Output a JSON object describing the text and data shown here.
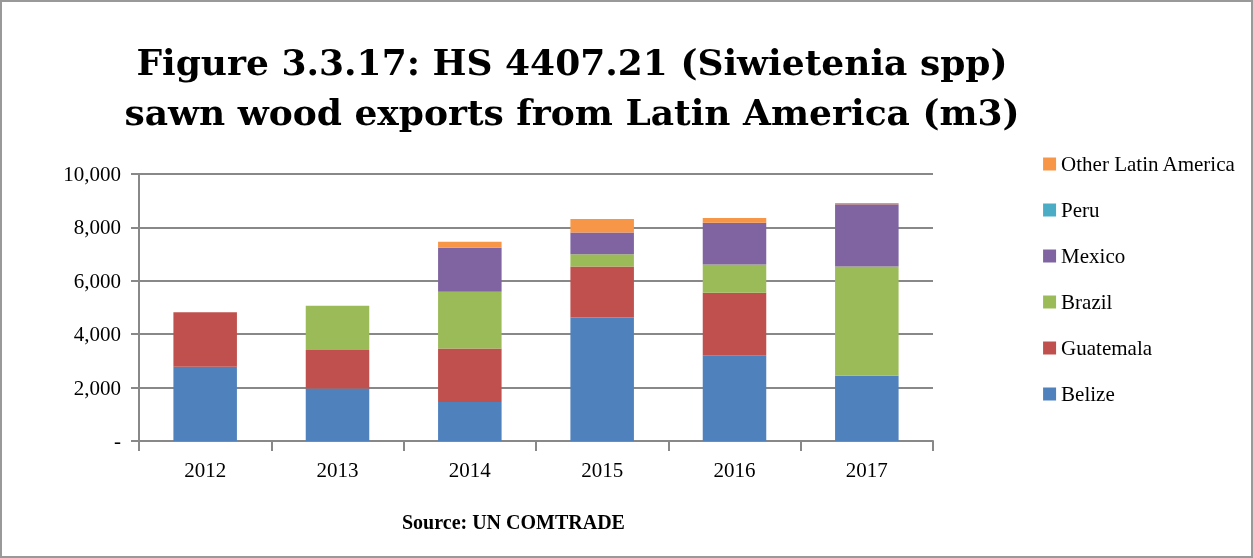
{
  "chart_data": {
    "type": "bar",
    "title": "Figure 3.3.17: HS 4407.21 (Siwietenia spp)\nsawn wood exports from Latin America (m3)",
    "categories": [
      "2012",
      "2013",
      "2014",
      "2015",
      "2016",
      "2017"
    ],
    "series": [
      {
        "name": "Belize",
        "color": "#4f81bd",
        "values": [
          2780,
          1970,
          1460,
          4630,
          3210,
          2440
        ]
      },
      {
        "name": "Guatemala",
        "color": "#c0504d",
        "values": [
          2040,
          1440,
          2000,
          1910,
          2340,
          null
        ]
      },
      {
        "name": "Brazil",
        "color": "#9bbb59",
        "values": [
          null,
          1660,
          2130,
          450,
          1060,
          4100
        ]
      },
      {
        "name": "Mexico",
        "color": "#8064a2",
        "values": [
          null,
          null,
          1650,
          820,
          1560,
          2330
        ]
      },
      {
        "name": "Peru",
        "color": "#4bacc6",
        "values": [
          null,
          null,
          null,
          null,
          null,
          null
        ]
      },
      {
        "name": "Other Latin America",
        "color": "#f79646",
        "values": [
          null,
          null,
          220,
          500,
          180,
          40
        ]
      }
    ],
    "stacked": true,
    "ylim": [
      0,
      10000
    ],
    "yticks": [
      {
        "value": 0,
        "label": "-"
      },
      {
        "value": 2000,
        "label": "2,000"
      },
      {
        "value": 4000,
        "label": "4,000"
      },
      {
        "value": 6000,
        "label": "6,000"
      },
      {
        "value": 8000,
        "label": "8,000"
      },
      {
        "value": 10000,
        "label": "10,000"
      }
    ],
    "grid": "y",
    "legend": "right",
    "annotations": [
      "Source: UN COMTRADE"
    ]
  }
}
